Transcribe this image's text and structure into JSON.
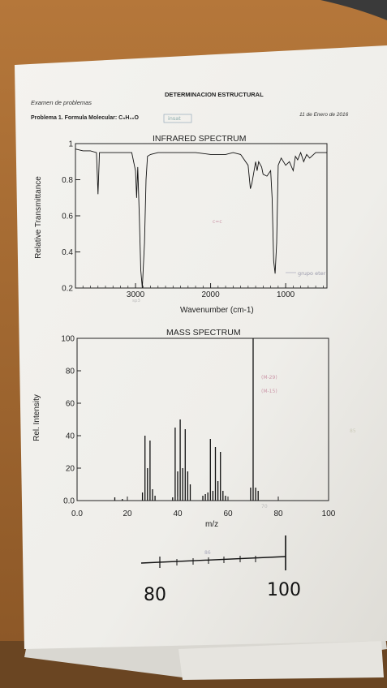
{
  "header": {
    "title": "DETERMINACION ESTRUCTURAL",
    "subtitle": "Examen de problemas",
    "date": "11 de Enero de 2016",
    "problem": "Problema 1. Formula Molecular: C₅H₁₀O"
  },
  "handwriting": {
    "formula_note": "insat",
    "ir_cc": "c=c",
    "ir_3000_note": "sp3",
    "ir_ether": "grupo eter",
    "ms_peak_m": "(M-29)",
    "ms_peak_m15": "(M-15)",
    "ms_side": "85",
    "ms_70": "70",
    "ruler_note": "86",
    "ruler_left": "80",
    "ruler_right": "100"
  },
  "chart_data": [
    {
      "type": "line",
      "title": "INFRARED SPECTRUM",
      "xlabel": "Wavenumber (cm-1)",
      "ylabel": "Relative Transmittance",
      "xlim": [
        3800,
        450
      ],
      "ylim": [
        0.2,
        1.0
      ],
      "xticks": [
        "3000",
        "2000",
        "1000"
      ],
      "yticks": [
        "0.2",
        "0.4",
        "0.6",
        "0.8",
        "1"
      ],
      "series": [
        {
          "x": [
            3800,
            3700,
            3600,
            3520,
            3500,
            3480,
            3420,
            3300,
            3150,
            3050,
            3000,
            2985,
            2970,
            2950,
            2930,
            2910,
            2880,
            2860,
            2840,
            2800,
            2700,
            2600,
            2400,
            2200,
            2000,
            1800,
            1700,
            1600,
            1500,
            1470,
            1450,
            1400,
            1380,
            1360,
            1320,
            1300,
            1250,
            1200,
            1180,
            1160,
            1140,
            1120,
            1100,
            1080,
            1060,
            1000,
            950,
            900,
            870,
            840,
            800,
            760,
            720,
            680,
            600,
            500,
            450
          ],
          "y": [
            0.97,
            0.96,
            0.96,
            0.95,
            0.72,
            0.95,
            0.95,
            0.95,
            0.95,
            0.95,
            0.85,
            0.7,
            0.87,
            0.6,
            0.3,
            0.2,
            0.45,
            0.8,
            0.93,
            0.94,
            0.95,
            0.95,
            0.95,
            0.95,
            0.94,
            0.94,
            0.95,
            0.94,
            0.88,
            0.75,
            0.78,
            0.9,
            0.85,
            0.9,
            0.87,
            0.83,
            0.82,
            0.85,
            0.7,
            0.35,
            0.28,
            0.45,
            0.88,
            0.9,
            0.92,
            0.88,
            0.9,
            0.85,
            0.93,
            0.91,
            0.95,
            0.9,
            0.94,
            0.92,
            0.95,
            0.95,
            0.95
          ]
        }
      ]
    },
    {
      "type": "bar",
      "title": "MASS SPECTRUM",
      "xlabel": "m/z",
      "ylabel": "Rel. Intensity",
      "xlim": [
        0,
        100
      ],
      "ylim": [
        0,
        100
      ],
      "xticks": [
        "0.0",
        "20",
        "40",
        "60",
        "80",
        "100"
      ],
      "yticks": [
        "0.0",
        "20",
        "40",
        "60",
        "80",
        "100"
      ],
      "x": [
        15,
        18,
        26,
        27,
        28,
        29,
        30,
        31,
        38,
        39,
        40,
        41,
        42,
        43,
        44,
        45,
        50,
        51,
        52,
        53,
        54,
        55,
        56,
        57,
        58,
        59,
        69,
        70,
        71,
        72
      ],
      "values": [
        2,
        1,
        5,
        40,
        20,
        37,
        7,
        3,
        2,
        45,
        18,
        50,
        20,
        44,
        18,
        10,
        3,
        4,
        5,
        38,
        6,
        33,
        12,
        30,
        6,
        3,
        8,
        100,
        8,
        6
      ]
    }
  ]
}
